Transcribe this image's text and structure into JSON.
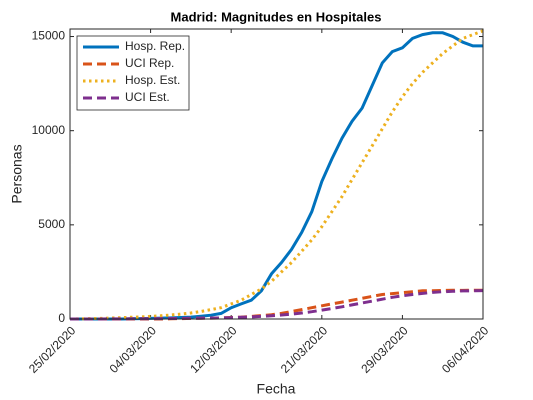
{
  "chart_data": {
    "type": "line",
    "title": "Madrid: Magnitudes en Hospitales",
    "xlabel": "Fecha",
    "ylabel": "Personas",
    "x": [
      "25/02/2020",
      "26/02/2020",
      "27/02/2020",
      "28/02/2020",
      "29/02/2020",
      "01/03/2020",
      "02/03/2020",
      "03/03/2020",
      "04/03/2020",
      "05/03/2020",
      "06/03/2020",
      "07/03/2020",
      "08/03/2020",
      "09/03/2020",
      "10/03/2020",
      "11/03/2020",
      "12/03/2020",
      "13/03/2020",
      "14/03/2020",
      "15/03/2020",
      "16/03/2020",
      "17/03/2020",
      "18/03/2020",
      "19/03/2020",
      "20/03/2020",
      "21/03/2020",
      "22/03/2020",
      "23/03/2020",
      "24/03/2020",
      "25/03/2020",
      "26/03/2020",
      "27/03/2020",
      "28/03/2020",
      "29/03/2020",
      "30/03/2020",
      "31/03/2020",
      "01/04/2020",
      "02/04/2020",
      "03/04/2020",
      "04/04/2020",
      "05/04/2020",
      "06/04/2020"
    ],
    "xticks": [
      "25/02/2020",
      "04/03/2020",
      "12/03/2020",
      "21/03/2020",
      "29/03/2020",
      "06/04/2020"
    ],
    "ylim": [
      0,
      15400
    ],
    "yticks": [
      0,
      5000,
      10000,
      15000
    ],
    "grid": false,
    "legend_position": "upper-left",
    "series": [
      {
        "name": "Hosp. Rep.",
        "color": "#0072BD",
        "linestyle": "solid",
        "values": [
          0,
          0,
          0,
          0,
          0,
          0,
          10,
          20,
          30,
          50,
          60,
          80,
          100,
          150,
          200,
          300,
          600,
          800,
          1000,
          1500,
          2400,
          3000,
          3700,
          4600,
          5700,
          7300,
          8500,
          9600,
          10500,
          11200,
          12400,
          13600,
          14200,
          14400,
          14900,
          15100,
          15200,
          15200,
          15000,
          14700,
          14500,
          14500
        ]
      },
      {
        "name": "UCI Rep.",
        "color": "#D95319",
        "linestyle": "dashed",
        "values": [
          0,
          0,
          0,
          0,
          0,
          0,
          0,
          0,
          0,
          0,
          10,
          20,
          30,
          40,
          50,
          60,
          80,
          100,
          140,
          180,
          230,
          300,
          400,
          500,
          600,
          700,
          800,
          900,
          1000,
          1100,
          1200,
          1300,
          1350,
          1400,
          1450,
          1500,
          1500,
          1520,
          1530,
          1520,
          1530,
          1530
        ]
      },
      {
        "name": "Hosp. Est.",
        "color": "#EDB120",
        "linestyle": "dotted",
        "values": [
          0,
          10,
          20,
          30,
          50,
          70,
          90,
          110,
          140,
          170,
          210,
          260,
          320,
          400,
          500,
          600,
          800,
          1000,
          1300,
          1600,
          2000,
          2500,
          3000,
          3600,
          4200,
          4900,
          5700,
          6500,
          7400,
          8300,
          9200,
          10100,
          11000,
          11800,
          12500,
          13100,
          13600,
          14100,
          14500,
          14900,
          15100,
          15300
        ]
      },
      {
        "name": "UCI Est.",
        "color": "#7E2F8E",
        "linestyle": "dashed",
        "values": [
          0,
          0,
          0,
          0,
          5,
          5,
          10,
          10,
          15,
          20,
          25,
          30,
          35,
          40,
          50,
          60,
          70,
          90,
          110,
          140,
          170,
          210,
          260,
          320,
          390,
          470,
          560,
          650,
          750,
          850,
          950,
          1050,
          1150,
          1230,
          1300,
          1360,
          1410,
          1450,
          1470,
          1490,
          1500,
          1510
        ]
      }
    ]
  }
}
